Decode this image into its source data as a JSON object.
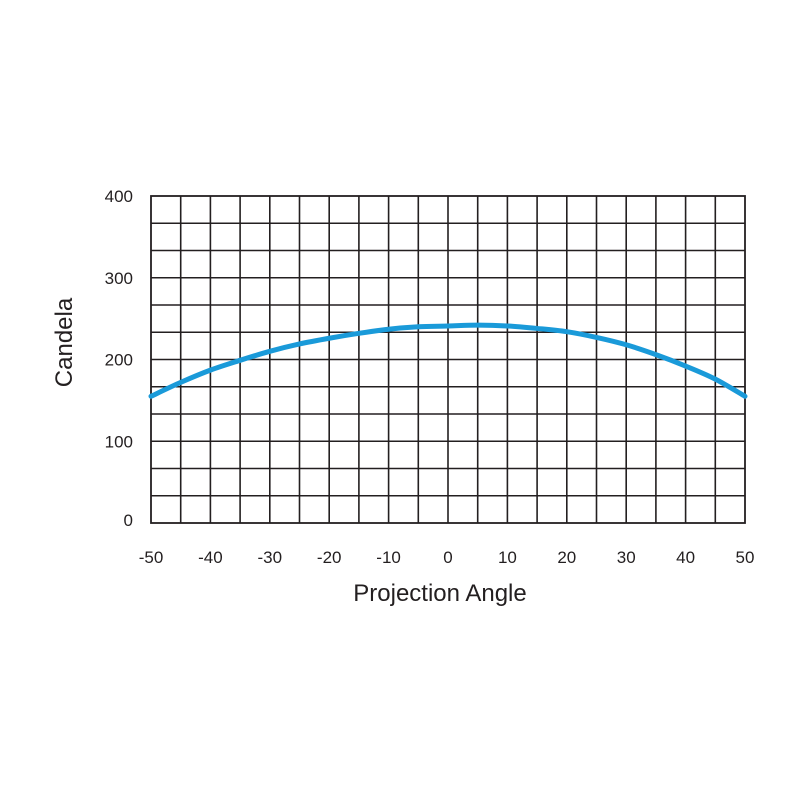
{
  "chart_data": {
    "type": "line",
    "title": "",
    "xlabel": "Projection Angle",
    "ylabel": "Candela",
    "xlim": [
      -50,
      50
    ],
    "ylim": [
      0,
      400
    ],
    "x_ticks": [
      "-50",
      "-40",
      "-30",
      "-20",
      "-10",
      "0",
      "10",
      "20",
      "30",
      "40",
      "50"
    ],
    "y_ticks": [
      "0",
      "100",
      "200",
      "300",
      "400"
    ],
    "grid": true,
    "series": [
      {
        "color": "#1a9ad9",
        "x": [
          -50,
          -45,
          -40,
          -35,
          -30,
          -25,
          -20,
          -15,
          -10,
          -5,
          0,
          5,
          10,
          15,
          20,
          25,
          30,
          35,
          40,
          45,
          50
        ],
        "y": [
          155,
          172,
          187,
          199,
          210,
          219,
          226,
          232,
          237,
          240,
          241,
          242,
          241,
          238,
          234,
          227,
          218,
          206,
          192,
          176,
          155
        ]
      }
    ]
  }
}
